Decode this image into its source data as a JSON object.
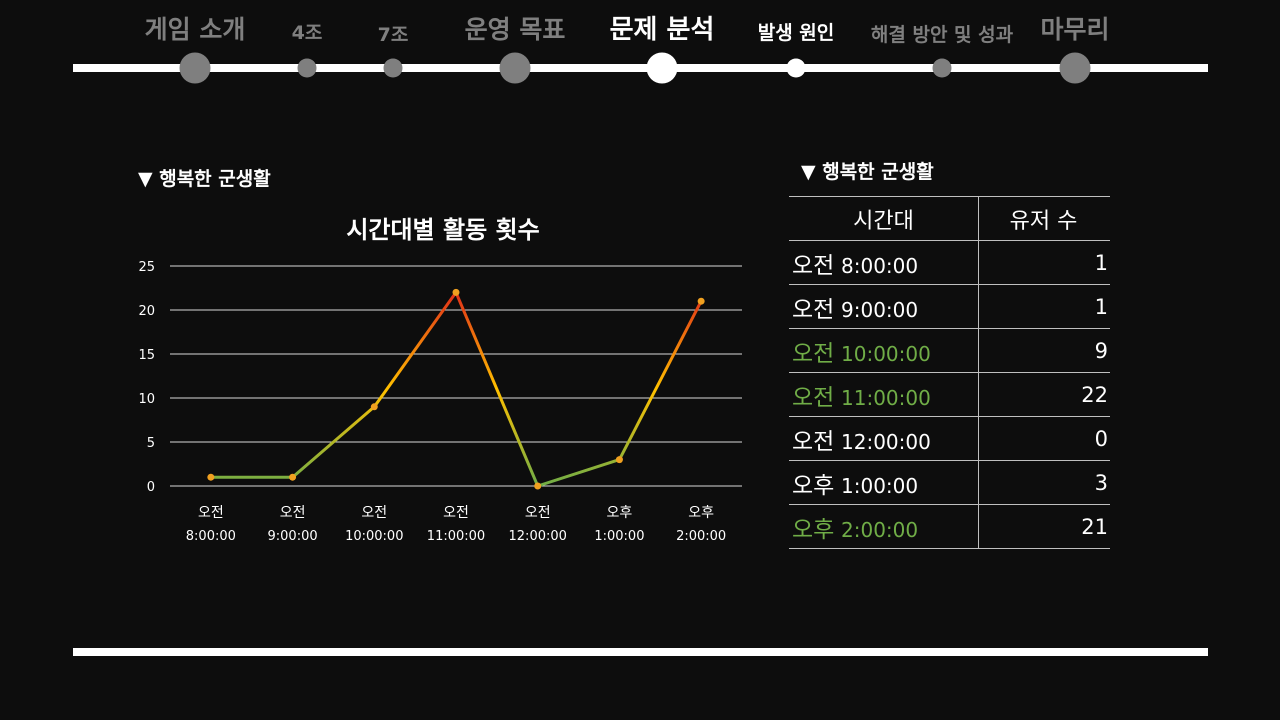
{
  "nav": {
    "items": [
      {
        "label": "게임 소개",
        "color": "#7f7f7f"
      },
      {
        "label": "4조",
        "color": "#7f7f7f"
      },
      {
        "label": "7조",
        "color": "#7f7f7f"
      },
      {
        "label": "운영 목표",
        "color": "#7f7f7f"
      },
      {
        "label": "문제 분석",
        "color": "#ffffff",
        "active": true
      },
      {
        "label": "발생 원인",
        "color": "#ffffff"
      },
      {
        "label": "해결 방안 및 성과",
        "color": "#7f7f7f"
      },
      {
        "label": "마무리",
        "color": "#7f7f7f"
      }
    ]
  },
  "left_section": {
    "title": "▼ 행복한 군생활"
  },
  "right_section": {
    "title": "▼ 행복한 군생활"
  },
  "table": {
    "headers": [
      "시간대",
      "유저 수"
    ],
    "rows": [
      {
        "prefix": "오전",
        "time": "8:00:00",
        "users": "1",
        "highlight": false
      },
      {
        "prefix": "오전",
        "time": "9:00:00",
        "users": "1",
        "highlight": false
      },
      {
        "prefix": "오전",
        "time": "10:00:00",
        "users": "9",
        "highlight": true
      },
      {
        "prefix": "오전",
        "time": "11:00:00",
        "users": "22",
        "highlight": true
      },
      {
        "prefix": "오전",
        "time": "12:00:00",
        "users": "0",
        "highlight": false
      },
      {
        "prefix": "오후",
        "time": "1:00:00",
        "users": "3",
        "highlight": false
      },
      {
        "prefix": "오후",
        "time": "2:00:00",
        "users": "21",
        "highlight": true
      }
    ]
  },
  "chart_data": {
    "type": "line",
    "title": "시간대별 활동 횟수",
    "categories": [
      [
        "오전",
        "8:00:00"
      ],
      [
        "오전",
        "9:00:00"
      ],
      [
        "오전",
        "10:00:00"
      ],
      [
        "오전",
        "11:00:00"
      ],
      [
        "오전",
        "12:00:00"
      ],
      [
        "오후",
        "1:00:00"
      ],
      [
        "오후",
        "2:00:00"
      ]
    ],
    "series": [
      {
        "values": [
          1,
          1,
          9,
          22,
          0,
          3,
          21
        ]
      }
    ],
    "ylim": [
      0,
      25
    ],
    "yticks": [
      "0",
      "5",
      "10",
      "15",
      "20",
      "25"
    ],
    "grid": true,
    "line_gradient": [
      "#e02f19",
      "#ffc000",
      "#70ad47"
    ],
    "marker_color": "#f0a020"
  }
}
